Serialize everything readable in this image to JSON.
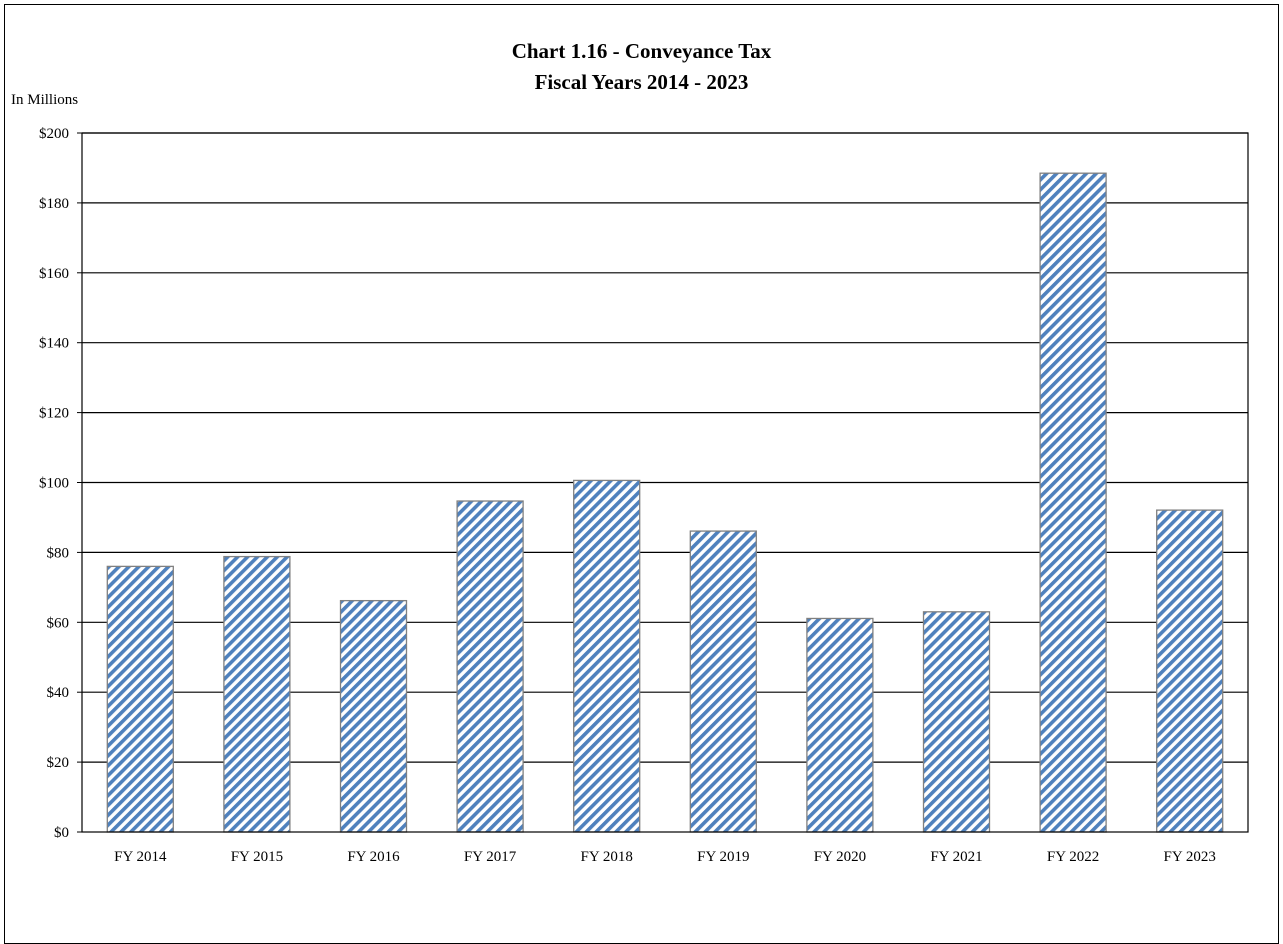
{
  "chart_data": {
    "type": "bar",
    "title": "Chart 1.16 - Conveyance Tax",
    "subtitle": "Fiscal Years 2014 - 2023",
    "unit_label": "In Millions",
    "xlabel": "",
    "ylabel": "",
    "ylim": [
      0,
      200
    ],
    "y_ticks": [
      0,
      20,
      40,
      60,
      80,
      100,
      120,
      140,
      160,
      180,
      200
    ],
    "y_tick_labels": [
      "$0",
      "$20",
      "$40",
      "$60",
      "$80",
      "$100",
      "$120",
      "$140",
      "$160",
      "$180",
      "$200"
    ],
    "categories": [
      "FY 2014",
      "FY 2015",
      "FY 2016",
      "FY 2017",
      "FY 2018",
      "FY 2019",
      "FY 2020",
      "FY 2021",
      "FY 2022",
      "FY 2023"
    ],
    "values": [
      76,
      78.8,
      66.2,
      94.7,
      100.6,
      86.1,
      61.1,
      63,
      188.5,
      92.1
    ],
    "grid": true,
    "legend": "none",
    "bar_color": "#4f81bd",
    "bar_outline": "#808080",
    "bar_fill_pattern": "diagonal-stripes"
  }
}
